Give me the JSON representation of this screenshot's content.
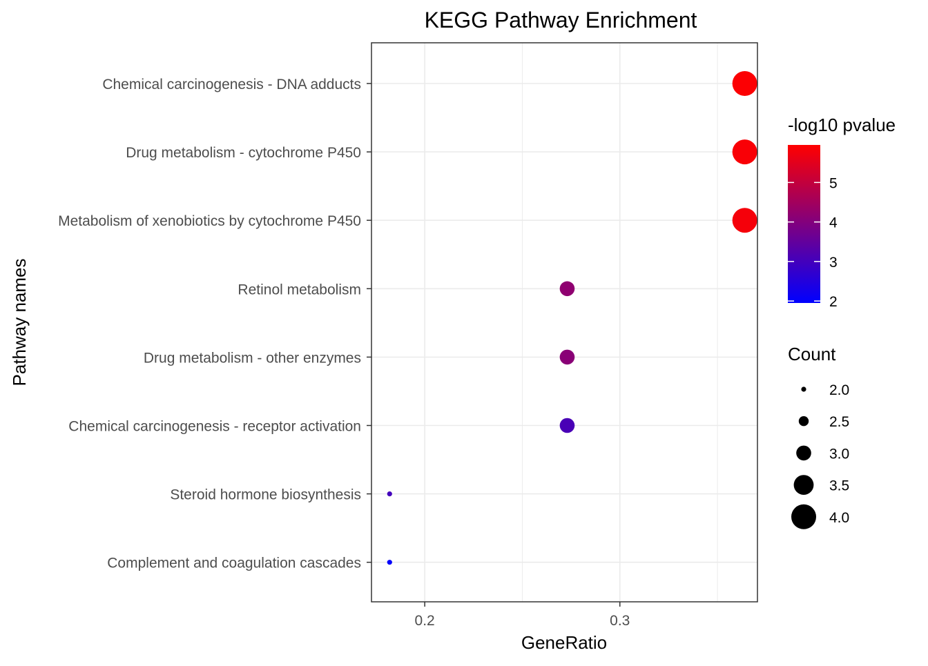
{
  "chart_data": {
    "type": "scatter",
    "title": "KEGG Pathway Enrichment",
    "xlabel": "GeneRatio",
    "ylabel": "Pathway names",
    "xlim": [
      0.1727,
      0.3705
    ],
    "x_ticks": [
      0.2,
      0.3
    ],
    "x_tick_labels": [
      "0.2",
      "0.3"
    ],
    "grid": true,
    "categories": [
      "Chemical carcinogenesis - DNA adducts",
      "Drug metabolism - cytochrome P450",
      "Metabolism of xenobiotics by cytochrome P450",
      "Retinol metabolism",
      "Drug metabolism - other enzymes",
      "Chemical carcinogenesis - receptor activation",
      "Steroid hormone biosynthesis",
      "Complement and coagulation cascades"
    ],
    "points": [
      {
        "pathway": "Chemical carcinogenesis - DNA adducts",
        "gene_ratio": 0.364,
        "count": 4,
        "neg_log10_pvalue": 5.9
      },
      {
        "pathway": "Drug metabolism - cytochrome P450",
        "gene_ratio": 0.364,
        "count": 4,
        "neg_log10_pvalue": 5.85
      },
      {
        "pathway": "Metabolism of xenobiotics by cytochrome P450",
        "gene_ratio": 0.364,
        "count": 4,
        "neg_log10_pvalue": 5.8
      },
      {
        "pathway": "Retinol metabolism",
        "gene_ratio": 0.273,
        "count": 3,
        "neg_log10_pvalue": 4.2
      },
      {
        "pathway": "Drug metabolism - other enzymes",
        "gene_ratio": 0.273,
        "count": 3,
        "neg_log10_pvalue": 4.1
      },
      {
        "pathway": "Chemical carcinogenesis - receptor activation",
        "gene_ratio": 0.273,
        "count": 3,
        "neg_log10_pvalue": 3.1
      },
      {
        "pathway": "Steroid hormone biosynthesis",
        "gene_ratio": 0.182,
        "count": 2,
        "neg_log10_pvalue": 3.0
      },
      {
        "pathway": "Complement and coagulation cascades",
        "gene_ratio": 0.182,
        "count": 2,
        "neg_log10_pvalue": 2.0
      }
    ],
    "color_legend": {
      "title": "-log10 pvalue",
      "min": 1.95,
      "max": 5.95,
      "breaks": [
        2,
        3,
        4,
        5
      ],
      "labels": [
        "2",
        "3",
        "4",
        "5"
      ],
      "low_color": "#0000ff",
      "high_color": "#ff0000"
    },
    "size_legend": {
      "title": "Count",
      "breaks": [
        2.0,
        2.5,
        3.0,
        3.5,
        4.0
      ],
      "labels": [
        "2.0",
        "2.5",
        "3.0",
        "3.5",
        "4.0"
      ]
    },
    "legend_position": "right"
  }
}
